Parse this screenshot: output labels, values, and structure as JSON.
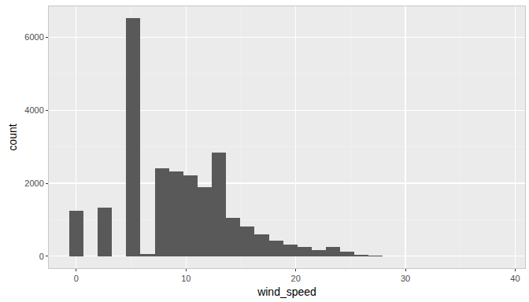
{
  "chart_data": {
    "type": "histogram",
    "x_label": "wind_speed",
    "y_label": "count",
    "bins": [
      -0.65,
      0.65,
      1.95,
      3.25,
      4.55,
      5.85,
      7.15,
      8.45,
      9.75,
      11.05,
      12.35,
      13.65,
      14.95,
      16.25,
      17.55,
      18.85,
      20.15,
      21.45,
      22.75,
      24.05,
      25.35,
      26.65,
      27.95,
      29.25,
      30.55,
      31.85,
      33.15,
      34.45,
      35.75,
      37.05,
      38.35
    ],
    "values": [
      1250,
      0,
      1340,
      0,
      6520,
      60,
      2410,
      2330,
      2220,
      1900,
      2840,
      1060,
      820,
      610,
      430,
      330,
      260,
      170,
      260,
      130,
      30,
      20,
      5,
      0,
      0,
      0,
      0,
      0,
      0,
      2
    ],
    "color": "#595959",
    "xlim": [
      -2.5,
      40.9
    ],
    "xticks": [
      0,
      10,
      20,
      30,
      40
    ],
    "ylim": [
      -326,
      6846
    ],
    "yticks": [
      0,
      2000,
      4000,
      6000
    ],
    "grid": true
  }
}
